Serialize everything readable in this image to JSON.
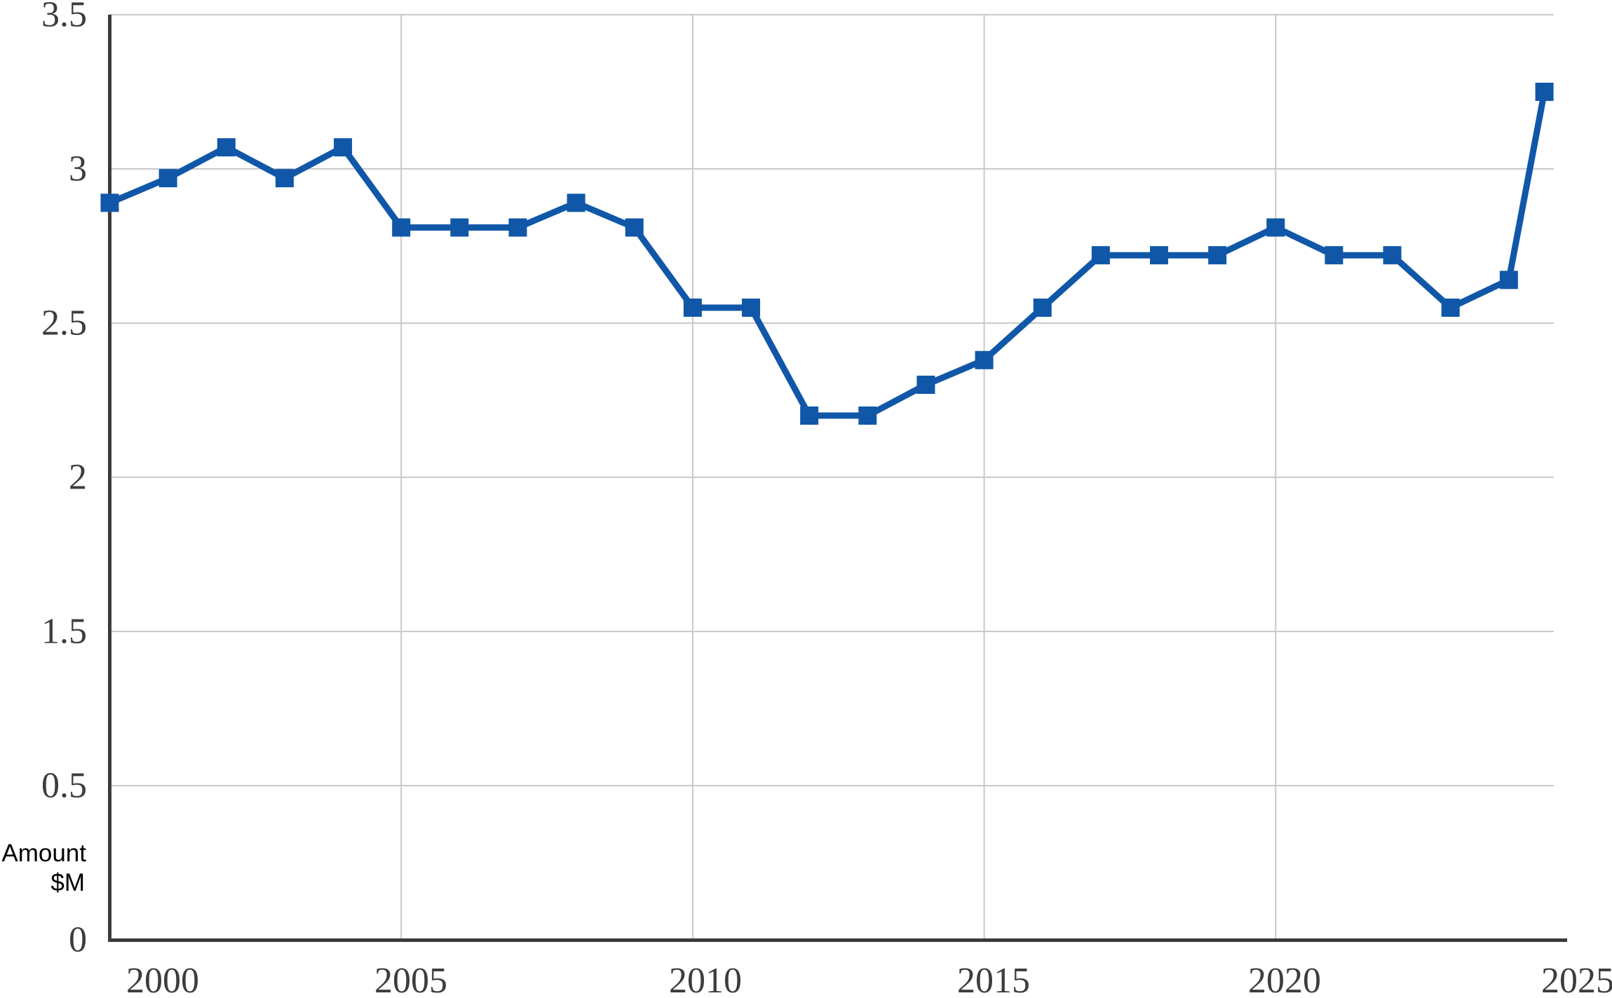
{
  "chart_data": {
    "type": "line",
    "title": "",
    "xlabel": "",
    "ylabel": "Amount $M",
    "ylabel_lines": [
      "Amount",
      "$M"
    ],
    "series": [
      {
        "name": "Amount $M",
        "marker": "square",
        "points": [
          {
            "x": 2000,
            "y": 2.89
          },
          {
            "x": 2001,
            "y": 2.97
          },
          {
            "x": 2002,
            "y": 3.07
          },
          {
            "x": 2003,
            "y": 2.97
          },
          {
            "x": 2004,
            "y": 3.07
          },
          {
            "x": 2005,
            "y": 2.81
          },
          {
            "x": 2006,
            "y": 2.81
          },
          {
            "x": 2007,
            "y": 2.81
          },
          {
            "x": 2008,
            "y": 2.89
          },
          {
            "x": 2009,
            "y": 2.81
          },
          {
            "x": 2010,
            "y": 2.55
          },
          {
            "x": 2011,
            "y": 2.55
          },
          {
            "x": 2012,
            "y": 2.2
          },
          {
            "x": 2013,
            "y": 2.2
          },
          {
            "x": 2014,
            "y": 2.3
          },
          {
            "x": 2015,
            "y": 2.38
          },
          {
            "x": 2016,
            "y": 2.55
          },
          {
            "x": 2017,
            "y": 2.72
          },
          {
            "x": 2018,
            "y": 2.72
          },
          {
            "x": 2019,
            "y": 2.72
          },
          {
            "x": 2020,
            "y": 2.81
          },
          {
            "x": 2021,
            "y": 2.72
          },
          {
            "x": 2022,
            "y": 2.72
          },
          {
            "x": 2023,
            "y": 2.55
          },
          {
            "x": 2024,
            "y": 2.64
          },
          {
            "x": 2024.61,
            "y": 3.25
          }
        ]
      }
    ],
    "x_ticks": {
      "labels": [
        "2000",
        "2005",
        "2010",
        "2015",
        "2020",
        "2025"
      ],
      "values": [
        2000,
        2005,
        2010,
        2015,
        2020,
        2025
      ]
    },
    "y_ticks": {
      "labels": [
        "3.5",
        "3",
        "2.5",
        "2",
        "1.5",
        "0.5",
        "0"
      ],
      "note": "labels are evenly spaced top-to-bottom and the value 1 is skipped between 1.5 and 0.5"
    },
    "xlim": [
      2000,
      2025
    ],
    "ylim_labelled": [
      0,
      3.5
    ],
    "grid": {
      "horizontal": true,
      "vertical": true
    },
    "legend": "none",
    "colors": {
      "line": "#1057a8",
      "axis": "#3b3b3b",
      "gridline": "#c9c9c9",
      "tick_text": "#3d3d3d",
      "axis_title_text": "#000000",
      "background": "#ffffff"
    }
  }
}
